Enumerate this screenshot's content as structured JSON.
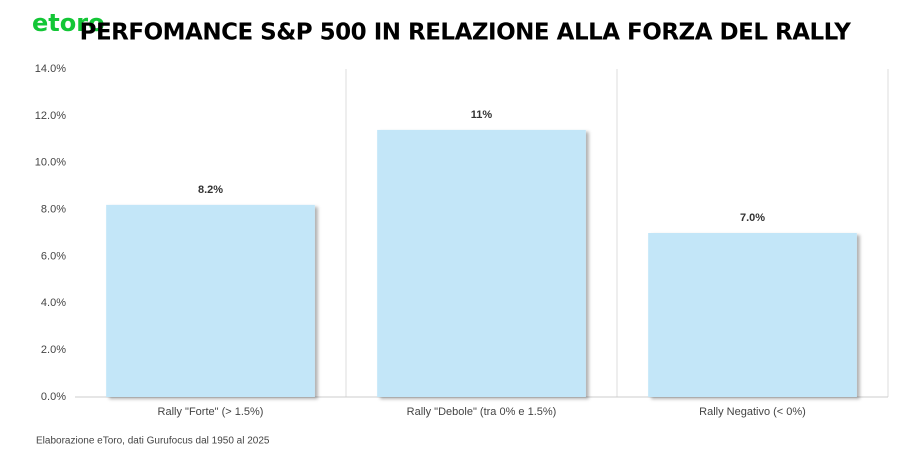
{
  "logo": "etoro",
  "chart_data": {
    "type": "bar",
    "title": "PERFOMANCE S&P 500 IN RELAZIONE ALLA FORZA DEL RALLY",
    "categories": [
      "Rally \"Forte\" (> 1.5%)",
      "Rally \"Debole\" (tra 0% e 1.5%)",
      "Rally Negativo (< 0%)"
    ],
    "values": [
      8.2,
      11.4,
      7.0
    ],
    "value_labels": [
      "8.2%",
      "11%",
      "7.0%"
    ],
    "color": "#c3e6f8",
    "ylim": [
      0,
      14
    ],
    "yticks": [
      {
        "value": 0,
        "label": "0.0%"
      },
      {
        "value": 2,
        "label": "2.0%"
      },
      {
        "value": 4,
        "label": "4.0%"
      },
      {
        "value": 6,
        "label": "6.0%"
      },
      {
        "value": 8,
        "label": "8.0%"
      },
      {
        "value": 10,
        "label": "10.0%"
      },
      {
        "value": 12,
        "label": "12.0%"
      },
      {
        "value": 14,
        "label": "14.0%"
      }
    ],
    "source": "Elaborazione eToro, dati Gurufocus dal 1950 al 2025"
  }
}
